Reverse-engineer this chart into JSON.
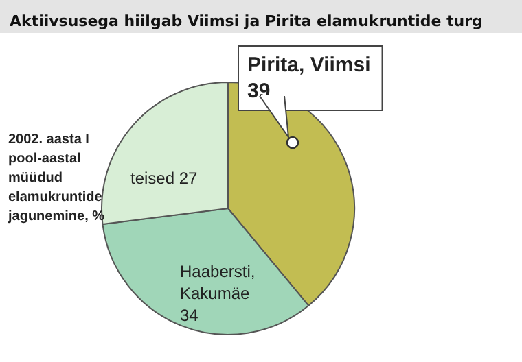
{
  "chart_data": {
    "type": "pie",
    "title": "Aktiivsusega hiilgab Viimsi ja Pirita elamukruntide turg",
    "subtitle": "2002. aasta I pool-aastal müüdud elamukruntide jagunemine, %",
    "categories": [
      "Pirita, Viimsi",
      "Haabersti, Kakumäe",
      "teised"
    ],
    "values": [
      39,
      34,
      27
    ],
    "colors": [
      "#c2bd52",
      "#a0d6b8",
      "#d8eed6"
    ],
    "data_labels": true,
    "legend": false
  }
}
